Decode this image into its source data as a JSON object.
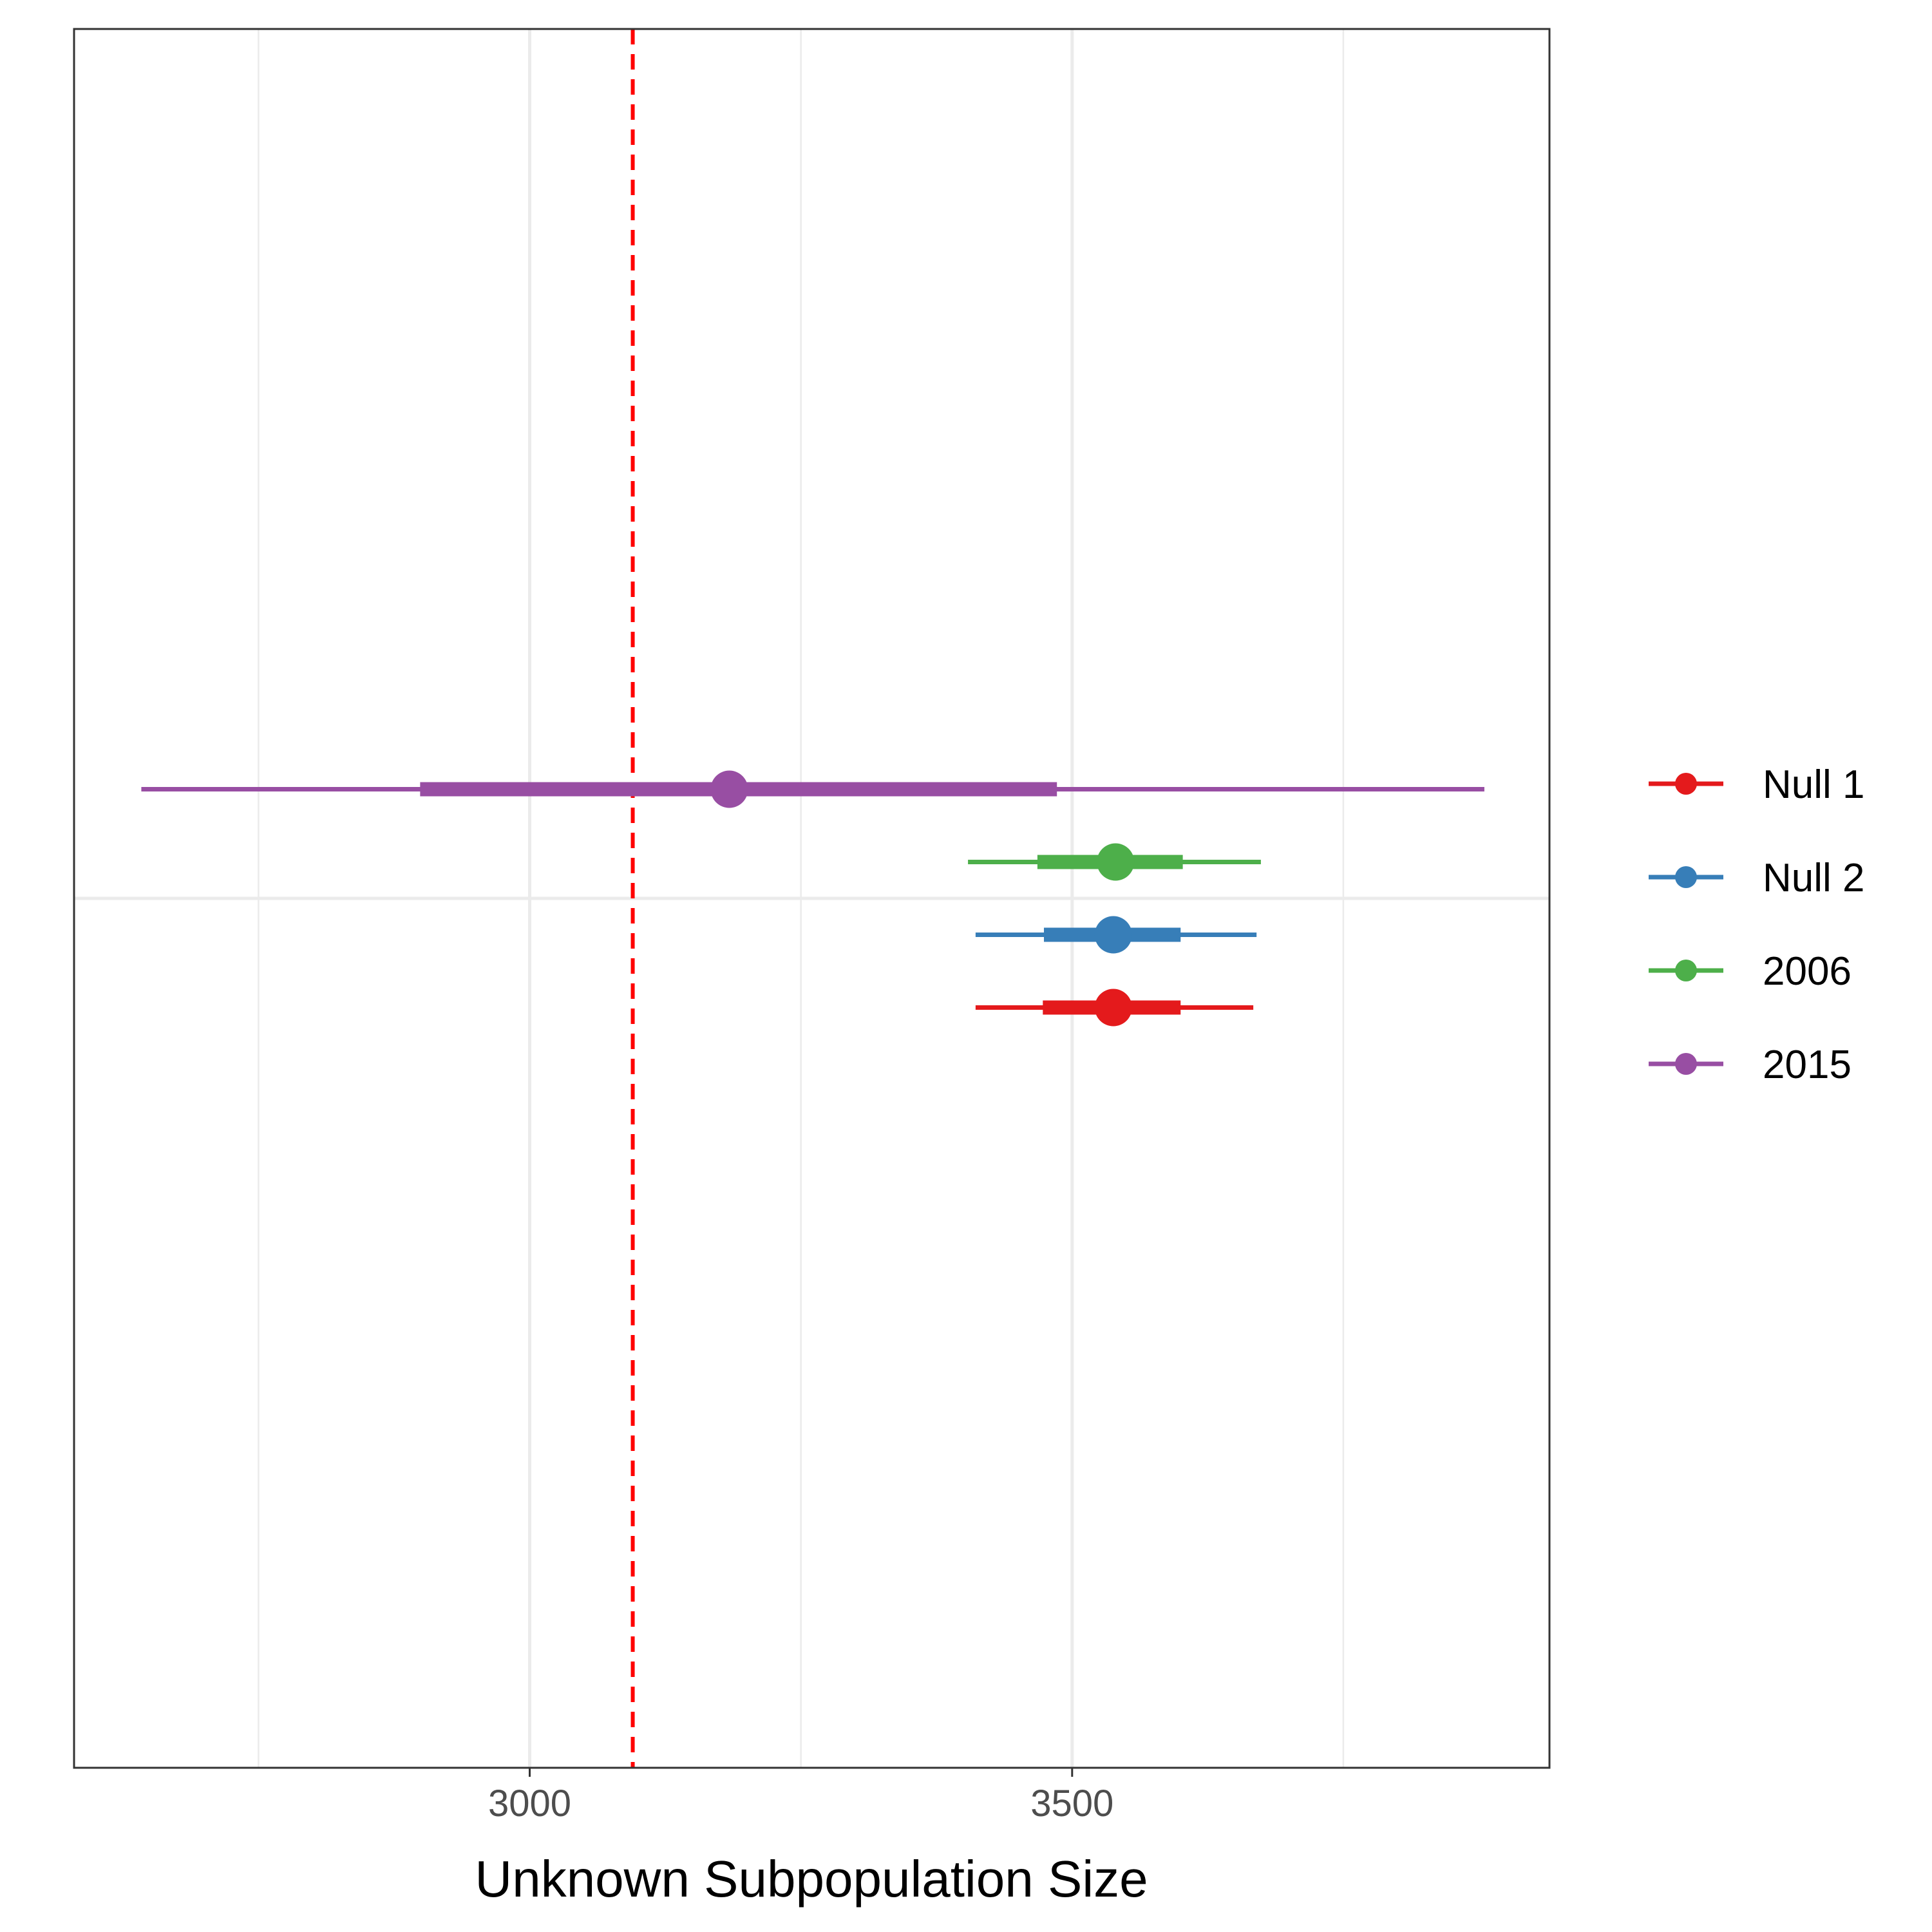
{
  "chart_data": {
    "type": "scatter",
    "subtype": "pointrange",
    "title": "",
    "xlabel": "Unknown Subpopulation Size",
    "ylabel": "",
    "xlim": [
      2580,
      3940
    ],
    "x_ticks": [
      3000,
      3500
    ],
    "x_tick_labels": [
      "3000",
      "3500"
    ],
    "x_minor_gridlines": [
      2750,
      3250,
      3750
    ],
    "y_axis_ticks_shown": false,
    "grid": true,
    "reference_line": {
      "x": 3095,
      "style": "dashed",
      "color": "#ff0000"
    },
    "legend": {
      "position": "right"
    },
    "series": [
      {
        "name": "Null 1",
        "color": "#e41a1c",
        "point": 3538,
        "inner_interval": [
          3473,
          3600
        ],
        "outer_interval": [
          3411,
          3667
        ]
      },
      {
        "name": "Null 2",
        "color": "#377eb8",
        "point": 3538,
        "inner_interval": [
          3474,
          3600
        ],
        "outer_interval": [
          3411,
          3670
        ]
      },
      {
        "name": "2006",
        "color": "#4daf4a",
        "point": 3540,
        "inner_interval": [
          3468,
          3602
        ],
        "outer_interval": [
          3404,
          3674
        ]
      },
      {
        "name": "2015",
        "color": "#984ea3",
        "point": 3184,
        "inner_interval": [
          2899,
          3486
        ],
        "outer_interval": [
          2642,
          3880
        ]
      }
    ]
  }
}
